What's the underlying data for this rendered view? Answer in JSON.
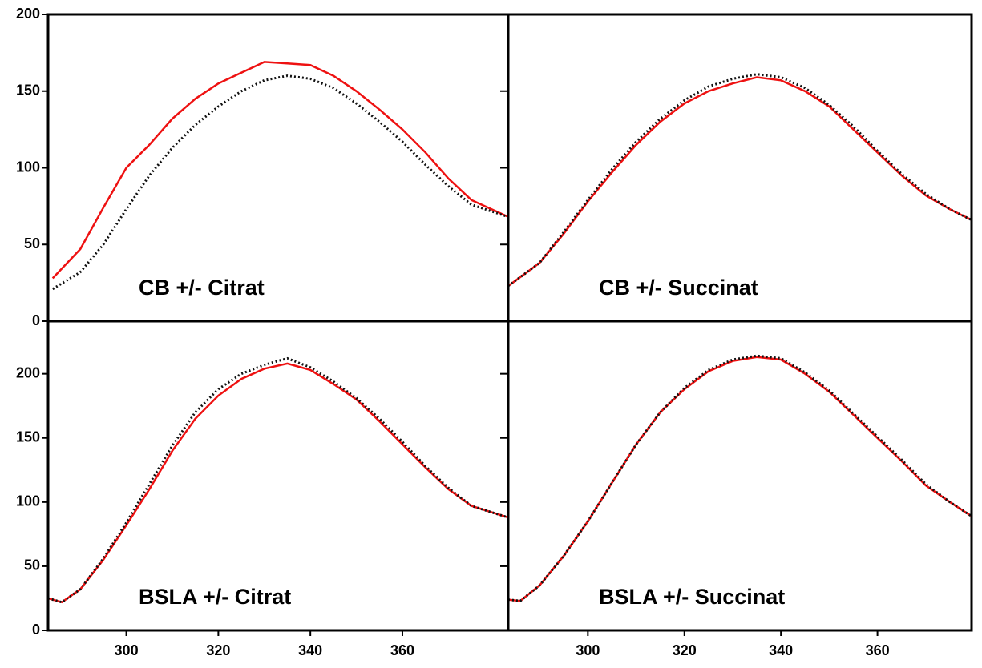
{
  "chart_data": [
    {
      "type": "line",
      "annotation": "CB +/- Citrat",
      "xlim": [
        283,
        383
      ],
      "ylim": [
        0,
        200
      ],
      "yticks": [
        0,
        50,
        100,
        150,
        200
      ],
      "xticks": [],
      "x": [
        284,
        290,
        295,
        300,
        305,
        310,
        315,
        320,
        325,
        330,
        335,
        340,
        345,
        350,
        355,
        360,
        365,
        370,
        375,
        383
      ],
      "series": [
        {
          "color": "#ee1111",
          "style": "solid",
          "values": [
            28,
            47,
            74,
            100,
            115,
            132,
            145,
            155,
            162,
            169,
            168,
            167,
            160,
            150,
            138,
            125,
            110,
            93,
            79,
            68
          ]
        },
        {
          "color": "#111111",
          "style": "dotted",
          "values": [
            21,
            32,
            50,
            73,
            95,
            113,
            128,
            140,
            150,
            157,
            160,
            158,
            152,
            142,
            130,
            117,
            102,
            88,
            76,
            68
          ]
        }
      ]
    },
    {
      "type": "line",
      "annotation": "CB +/- Succinat",
      "xlim": [
        283.5,
        379.5
      ],
      "ylim": [
        0,
        200
      ],
      "yticks": [],
      "xticks": [],
      "x": [
        283.5,
        290,
        295,
        300,
        305,
        310,
        315,
        320,
        325,
        330,
        335,
        340,
        345,
        350,
        355,
        360,
        365,
        370,
        375,
        379.5
      ],
      "series": [
        {
          "color": "#ee1111",
          "style": "solid",
          "values": [
            23,
            38,
            57,
            78,
            97,
            115,
            130,
            142,
            150,
            155,
            159,
            157,
            150,
            140,
            125,
            110,
            95,
            82,
            73,
            66
          ]
        },
        {
          "color": "#111111",
          "style": "dotted",
          "values": [
            23,
            38,
            58,
            79,
            99,
            117,
            132,
            144,
            153,
            158,
            161,
            159,
            152,
            141,
            127,
            111,
            96,
            83,
            73,
            66
          ]
        }
      ]
    },
    {
      "type": "line",
      "annotation": "BSLA +/- Citrat",
      "xlim": [
        283,
        383
      ],
      "ylim": [
        0,
        241
      ],
      "yticks": [
        0,
        50,
        100,
        150,
        200
      ],
      "xticks": [
        300,
        320,
        340,
        360
      ],
      "x": [
        283,
        286,
        290,
        295,
        300,
        305,
        310,
        315,
        320,
        325,
        330,
        335,
        340,
        345,
        350,
        355,
        360,
        365,
        370,
        375,
        383
      ],
      "series": [
        {
          "color": "#ee1111",
          "style": "solid",
          "values": [
            25,
            22,
            32,
            55,
            82,
            110,
            140,
            165,
            183,
            196,
            204,
            208,
            203,
            192,
            180,
            163,
            145,
            127,
            110,
            97,
            88
          ]
        },
        {
          "color": "#111111",
          "style": "dotted",
          "values": [
            25,
            22,
            32,
            56,
            84,
            114,
            144,
            170,
            188,
            200,
            207,
            212,
            205,
            194,
            181,
            165,
            147,
            128,
            111,
            97,
            88
          ]
        }
      ]
    },
    {
      "type": "line",
      "annotation": "BSLA +/- Succinat",
      "xlim": [
        283.5,
        379.5
      ],
      "ylim": [
        0,
        241
      ],
      "yticks": [],
      "xticks": [
        300,
        320,
        340,
        360
      ],
      "x": [
        283.5,
        286,
        290,
        295,
        300,
        305,
        310,
        315,
        320,
        325,
        330,
        335,
        340,
        345,
        350,
        355,
        360,
        365,
        370,
        375,
        379.5
      ],
      "series": [
        {
          "color": "#ee1111",
          "style": "solid",
          "values": [
            24,
            23,
            35,
            58,
            85,
            115,
            145,
            170,
            188,
            202,
            210,
            213,
            211,
            200,
            186,
            168,
            150,
            132,
            113,
            100,
            89
          ]
        },
        {
          "color": "#111111",
          "style": "dotted",
          "values": [
            24,
            23,
            35,
            58,
            85,
            115,
            145,
            170,
            189,
            203,
            211,
            214,
            212,
            201,
            187,
            169,
            151,
            133,
            114,
            100,
            89
          ]
        }
      ]
    }
  ]
}
